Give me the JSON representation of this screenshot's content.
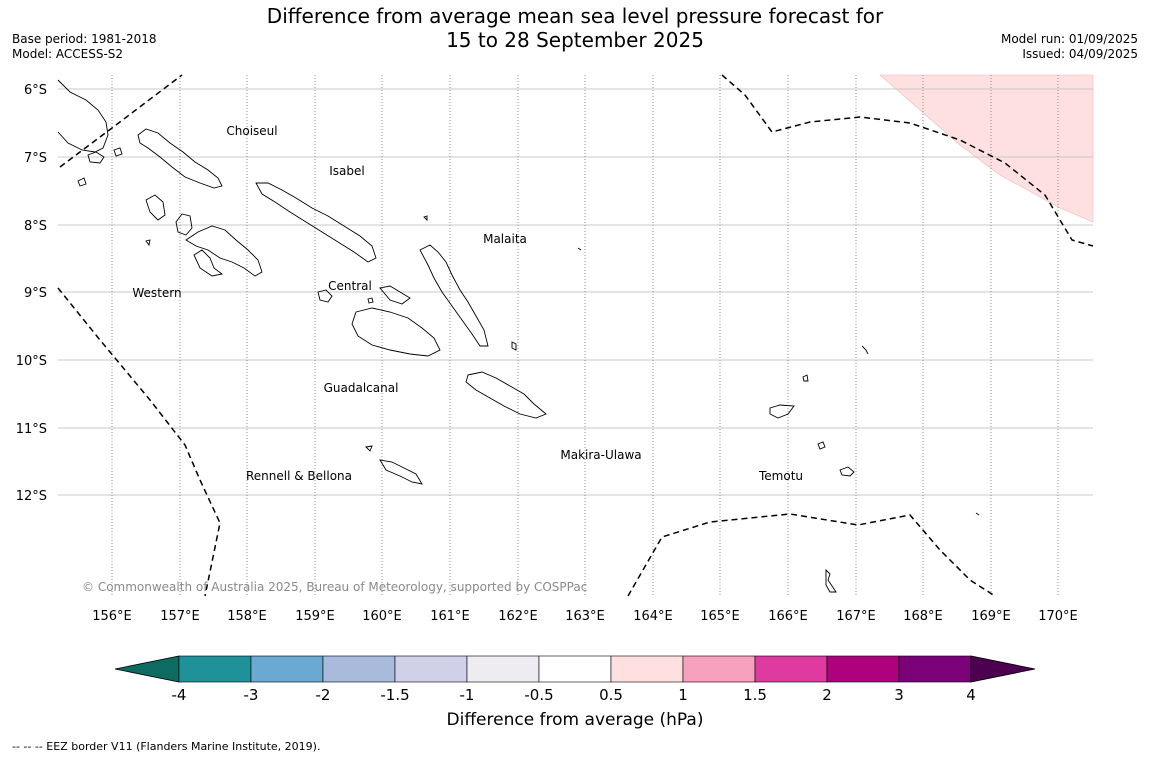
{
  "title": {
    "line1": "Difference from average mean sea level pressure forecast for",
    "line2": "15 to 28 September 2025"
  },
  "meta_left": {
    "base_period": "Base period: 1981-2018",
    "model": "Model: ACCESS-S2"
  },
  "meta_right": {
    "model_run": "Model run: 01/09/2025",
    "issued": "Issued: 04/09/2025"
  },
  "map": {
    "lat_labels": [
      "6°S",
      "7°S",
      "8°S",
      "9°S",
      "10°S",
      "11°S",
      "12°S"
    ],
    "lon_labels": [
      "156°E",
      "157°E",
      "158°E",
      "159°E",
      "160°E",
      "161°E",
      "162°E",
      "163°E",
      "164°E",
      "165°E",
      "166°E",
      "167°E",
      "168°E",
      "169°E",
      "170°E"
    ],
    "region_labels": [
      {
        "id": "choiseul",
        "text": "Choiseul"
      },
      {
        "id": "isabel",
        "text": "Isabel"
      },
      {
        "id": "malaita",
        "text": "Malaita"
      },
      {
        "id": "central",
        "text": "Central"
      },
      {
        "id": "western",
        "text": "Western"
      },
      {
        "id": "guadalcanal",
        "text": "Guadalcanal"
      },
      {
        "id": "makira",
        "text": "Makira-Ulawa"
      },
      {
        "id": "rennell",
        "text": "Rennell & Bellona"
      },
      {
        "id": "temotu",
        "text": "Temotu"
      }
    ],
    "copyright": "© Commonwealth of Australia 2025, Bureau of Meteorology, supported by COSPPac",
    "anomaly_fill_color": "#fde0df"
  },
  "colorbar": {
    "title": "Difference from average (hPa)",
    "tick_labels": [
      "-4",
      "-3",
      "-2",
      "-1.5",
      "-1",
      "-0.5",
      "0.5",
      "1",
      "1.5",
      "2",
      "3",
      "4"
    ],
    "colors": [
      "#0d6b62",
      "#1f9199",
      "#6aa9d2",
      "#a8bbdc",
      "#d0d0e8",
      "#eeecf1",
      "#ffffff",
      "#fde0df",
      "#f8a1bf",
      "#de3a9f",
      "#ae017e",
      "#7a0177",
      "#4d0050"
    ]
  },
  "eez_note": "-- -- -- EEZ border V11 (Flanders Marine Institute, 2019)."
}
